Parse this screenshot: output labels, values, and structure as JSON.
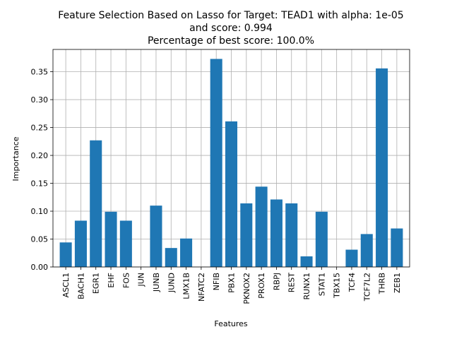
{
  "chart_data": {
    "type": "bar",
    "title_lines": [
      "Feature Selection Based on Lasso for Target: TEAD1 with alpha: 1e-05",
      "and score: 0.994",
      "Percentage of best score: 100.0%"
    ],
    "xlabel": "Features",
    "ylabel": "Importance",
    "categories": [
      "ASCL1",
      "BACH1",
      "EGR1",
      "EHF",
      "FOS",
      "JUN",
      "JUNB",
      "JUND",
      "LMX1B",
      "NFATC2",
      "NFIB",
      "PBX1",
      "PKNOX2",
      "PROX1",
      "RBPJ",
      "REST",
      "RUNX1",
      "STAT1",
      "TBX15",
      "TCF4",
      "TCF7L2",
      "THRB",
      "ZEB1"
    ],
    "values": [
      0.044,
      0.083,
      0.227,
      0.099,
      0.083,
      0.0,
      0.11,
      0.034,
      0.051,
      0.0,
      0.373,
      0.261,
      0.114,
      0.144,
      0.121,
      0.114,
      0.019,
      0.099,
      0.0,
      0.031,
      0.059,
      0.356,
      0.069
    ],
    "ylim": [
      0,
      0.39
    ],
    "yticks": [
      "0.00",
      "0.05",
      "0.10",
      "0.15",
      "0.20",
      "0.25",
      "0.30",
      "0.35"
    ],
    "grid": true,
    "bar_color": "#1f77b4"
  }
}
